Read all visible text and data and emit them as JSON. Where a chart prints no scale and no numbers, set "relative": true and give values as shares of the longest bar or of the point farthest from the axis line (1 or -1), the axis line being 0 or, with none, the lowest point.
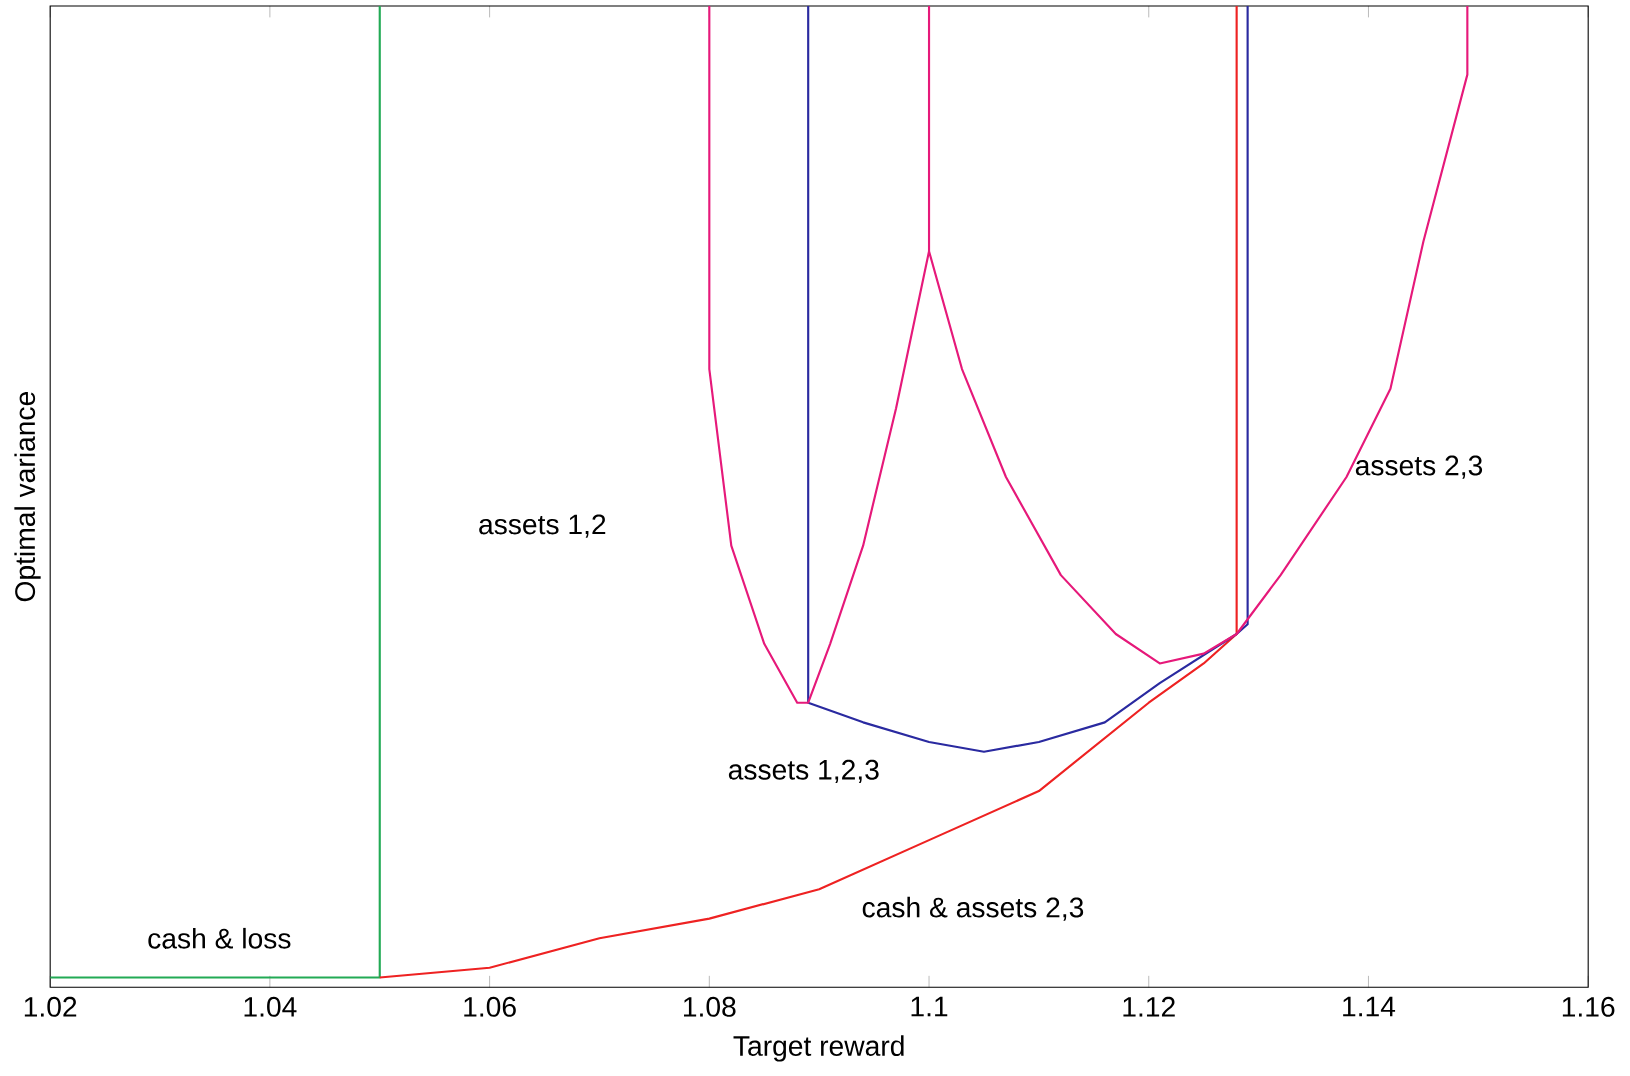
{
  "chart_data": {
    "type": "line",
    "relative": true,
    "xlabel": "Target reward",
    "ylabel": "Optimal variance",
    "xlim": [
      1.02,
      1.16
    ],
    "xticks": [
      1.02,
      1.04,
      1.06,
      1.08,
      1.1,
      1.12,
      1.14,
      1.16
    ],
    "tick_labels": "x",
    "grid": false,
    "series": [
      {
        "color": "#22aa55",
        "x": [
          1.02,
          1.05,
          1.05
        ],
        "values": [
          0.01,
          0.01,
          1.0
        ]
      },
      {
        "color": "#ee2222",
        "x": [
          1.05,
          1.06,
          1.07,
          1.08,
          1.09,
          1.1,
          1.11,
          1.12,
          1.125,
          1.128,
          1.128
        ],
        "values": [
          0.01,
          0.02,
          0.05,
          0.07,
          0.1,
          0.15,
          0.2,
          0.29,
          0.33,
          0.36,
          1.0
        ]
      },
      {
        "color": "#2a2aa0",
        "x": [
          1.089,
          1.089,
          1.094,
          1.1,
          1.105,
          1.11,
          1.116,
          1.121,
          1.128,
          1.129,
          1.129
        ],
        "values": [
          1.0,
          0.29,
          0.27,
          0.25,
          0.24,
          0.25,
          0.27,
          0.31,
          0.36,
          0.37,
          1.0
        ]
      },
      {
        "color": "#e6197a",
        "x": [
          1.08,
          1.08,
          1.081,
          1.082,
          1.085,
          1.087,
          1.088,
          1.089,
          1.091,
          1.094,
          1.097,
          1.1,
          1.1,
          null,
          1.1,
          1.103,
          1.107,
          1.112,
          1.117,
          1.121,
          1.125,
          1.128,
          1.132,
          1.138,
          1.142,
          1.145,
          1.149,
          1.149
        ],
        "values": [
          1.0,
          0.63,
          0.54,
          0.45,
          0.35,
          0.31,
          0.29,
          0.29,
          0.35,
          0.45,
          0.59,
          0.75,
          1.0,
          null,
          0.75,
          0.63,
          0.52,
          0.42,
          0.36,
          0.33,
          0.34,
          0.36,
          0.42,
          0.52,
          0.61,
          0.76,
          0.93,
          1.0
        ]
      }
    ],
    "annotations": [
      "assets 1,2",
      "assets 2,3",
      "assets 1,2,3",
      "cash & loss",
      "cash & assets 2,3"
    ]
  }
}
